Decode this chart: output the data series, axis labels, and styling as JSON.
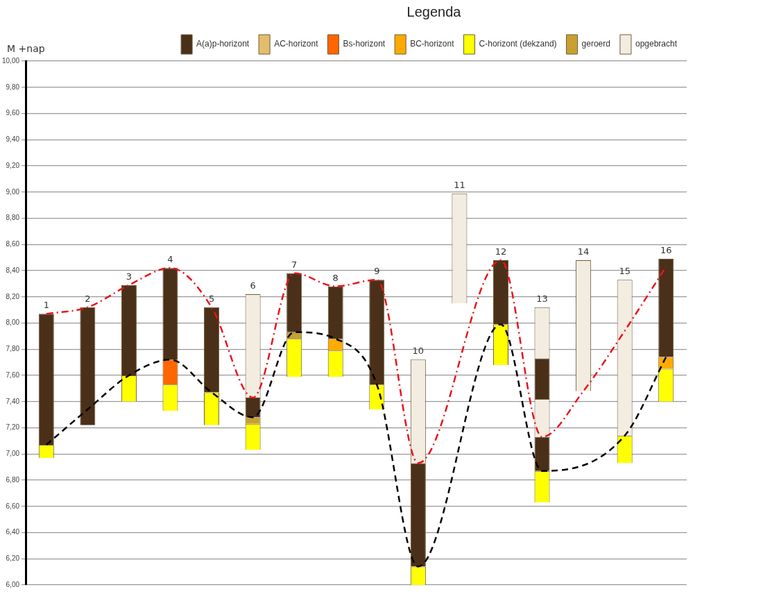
{
  "chart_data": {
    "type": "bar",
    "ylabel": "M +nap",
    "legend_title": "Legenda",
    "legend": "top right",
    "grid": "y",
    "categories": [
      "1",
      "2",
      "3",
      "4",
      "5",
      "6",
      "7",
      "8",
      "9",
      "10",
      "11",
      "12",
      "13",
      "14",
      "15",
      "16"
    ],
    "ylim": [
      6,
      10
    ],
    "yticks": [
      {
        "value": 6,
        "label": "6,00"
      },
      {
        "value": 6.2,
        "label": "6,20"
      },
      {
        "value": 6.4,
        "label": "6,40"
      },
      {
        "value": 6.6,
        "label": "6,60"
      },
      {
        "value": 6.8,
        "label": "6,80"
      },
      {
        "value": 7,
        "label": "7,00"
      },
      {
        "value": 7.2,
        "label": "7,20"
      },
      {
        "value": 7.4,
        "label": "7,40"
      },
      {
        "value": 7.6,
        "label": "7,60"
      },
      {
        "value": 7.8,
        "label": "7,80"
      },
      {
        "value": 8,
        "label": "8,00"
      },
      {
        "value": 8.2,
        "label": "8,20"
      },
      {
        "value": 8.4,
        "label": "8,40"
      },
      {
        "value": 8.6,
        "label": "8,60"
      },
      {
        "value": 8.8,
        "label": "8,80"
      },
      {
        "value": 9,
        "label": "9,00"
      },
      {
        "value": 9.2,
        "label": "9,20"
      },
      {
        "value": 9.4,
        "label": "9,40"
      },
      {
        "value": 9.6,
        "label": "9,60"
      },
      {
        "value": 9.8,
        "label": "9,80"
      },
      {
        "value": 10,
        "label": "10,00"
      }
    ],
    "series": [
      {
        "name": "A(a)p-horizont",
        "color": "#4a3019",
        "base": [
          7.07,
          7.22,
          7.6,
          7.72,
          7.47,
          7.28,
          7.93,
          7.88,
          7.53,
          6.14,
          null,
          7.99,
          7.42,
          null,
          null,
          7.74
        ],
        "values": [
          1.0,
          0.9,
          0.69,
          0.7,
          0.65,
          0.15,
          0.45,
          0.4,
          0.8,
          0.79,
          null,
          0.49,
          0.31,
          null,
          null,
          0.75
        ]
      },
      {
        "color": "#4a3019",
        "base": [
          null,
          null,
          null,
          null,
          null,
          null,
          null,
          null,
          null,
          null,
          null,
          null,
          6.87,
          null,
          null,
          null
        ],
        "values": [
          null,
          null,
          null,
          null,
          null,
          null,
          null,
          null,
          null,
          null,
          null,
          null,
          0.26,
          null,
          null,
          null
        ]
      },
      {
        "name": "AC-horizont",
        "color": "#e2bd6b",
        "base": [
          null,
          null,
          null,
          null,
          null,
          null,
          null,
          null,
          null,
          null,
          null,
          null,
          null,
          null,
          null,
          null
        ],
        "values": [
          null,
          null,
          null,
          null,
          null,
          null,
          null,
          null,
          null,
          null,
          null,
          null,
          null,
          null,
          null,
          null
        ]
      },
      {
        "name": "Bs-horizont",
        "color": "#ff6600",
        "base": [
          null,
          null,
          null,
          7.53,
          null,
          null,
          null,
          null,
          null,
          null,
          null,
          null,
          null,
          null,
          null,
          null
        ],
        "values": [
          null,
          null,
          null,
          0.19,
          null,
          null,
          null,
          null,
          null,
          null,
          null,
          null,
          null,
          null,
          null,
          null
        ]
      },
      {
        "name": "BC-horizont",
        "color": "#ffaa00",
        "base": [
          null,
          null,
          null,
          null,
          null,
          null,
          null,
          7.79,
          null,
          null,
          null,
          null,
          null,
          null,
          null,
          7.65
        ],
        "values": [
          null,
          null,
          null,
          null,
          null,
          null,
          null,
          0.09,
          null,
          null,
          null,
          null,
          null,
          null,
          null,
          0.09
        ]
      },
      {
        "name": "C-horizont (dekzand)",
        "color": "#ffff00",
        "base": [
          6.97,
          null,
          7.4,
          7.33,
          7.22,
          7.03,
          7.59,
          7.59,
          7.34,
          6.0,
          null,
          7.68,
          6.63,
          null,
          6.93,
          7.4
        ],
        "values": [
          0.1,
          null,
          0.2,
          0.2,
          0.25,
          0.2,
          0.29,
          0.2,
          0.19,
          0.14,
          null,
          0.31,
          0.24,
          null,
          0.21,
          0.25
        ]
      },
      {
        "name": "geroerd",
        "color": "#c8a030",
        "base": [
          null,
          null,
          null,
          null,
          null,
          7.23,
          7.88,
          null,
          null,
          null,
          null,
          null,
          null,
          null,
          null,
          null
        ],
        "values": [
          null,
          null,
          null,
          null,
          null,
          0.05,
          0.05,
          null,
          null,
          null,
          null,
          null,
          null,
          null,
          null,
          null
        ]
      },
      {
        "name": "opgebracht",
        "color": "#f3ece0",
        "base": [
          null,
          null,
          null,
          null,
          null,
          7.43,
          null,
          null,
          null,
          6.93,
          8.15,
          null,
          7.73,
          7.48,
          7.14,
          null
        ],
        "values": [
          null,
          null,
          null,
          null,
          null,
          0.79,
          null,
          null,
          null,
          0.79,
          0.84,
          null,
          0.39,
          1.0,
          1.19,
          null
        ]
      },
      {
        "color": "#f3ece0",
        "base": [
          null,
          null,
          null,
          null,
          null,
          null,
          null,
          null,
          null,
          null,
          null,
          null,
          7.13,
          null,
          null,
          null
        ],
        "values": [
          null,
          null,
          null,
          null,
          null,
          null,
          null,
          null,
          null,
          null,
          null,
          null,
          0.29,
          null,
          null,
          null
        ]
      },
      {
        "type": "line",
        "color": "#e8141c",
        "line_style": "dashdot",
        "marker": "none",
        "values": [
          8.07,
          8.12,
          8.29,
          8.42,
          8.12,
          7.43,
          8.38,
          8.28,
          8.33,
          6.93,
          null,
          8.48,
          7.13,
          7.48,
          7.94,
          8.43
        ]
      },
      {
        "type": "line",
        "color": "#000000",
        "line_style": "dashed",
        "marker": "none",
        "values": [
          7.07,
          7.34,
          7.6,
          7.72,
          7.47,
          7.28,
          7.93,
          7.88,
          7.53,
          6.14,
          null,
          7.99,
          6.87,
          null,
          7.14,
          7.74
        ]
      }
    ]
  }
}
